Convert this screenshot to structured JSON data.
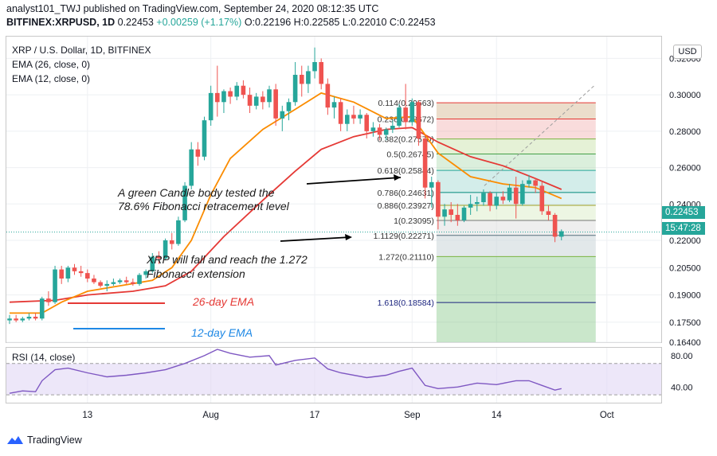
{
  "header": {
    "publisher_line": "analyst101_TWJ published on TradingView.com, September 24, 2020 08:12:35 UTC",
    "symbol": "BITFINEX:XRPUSD, 1D",
    "last": "0.22453",
    "change": "+0.00259 (+1.17%)",
    "ohlc": "O:0.22196 H:0.22585 L:0.22010 C:0.22453"
  },
  "legend": {
    "title": "XRP / U.S. Dollar, 1D, BITFINEX",
    "ema26": "EMA (26, close, 0)",
    "ema12": "EMA (12, close, 0)",
    "rsi": "RSI (14, close)"
  },
  "price_scale": {
    "currency_button": "USD",
    "last_price": "0.22453",
    "countdown": "15:47:28"
  },
  "annotations": {
    "note1_line1": "A green Candle body tested the",
    "note1_line2": "78.6% Fibonacci retracement level",
    "note2_line1": "XRP will fall and reach the 1.272",
    "note2_line2": "Fibonacci extension",
    "ema26_label": "26-day EMA",
    "ema12_label": "12-day EMA"
  },
  "footer": {
    "brand": "TradingView"
  },
  "colors": {
    "bull": "#26a69a",
    "bear": "#ef5350",
    "ema26": "#e53935",
    "ema12": "#fb8c00",
    "rsi": "#7e57c2",
    "rsi_band": "#e1d7f5",
    "ema26_sample": "#e53935",
    "ema12_sample": "#1e88e5"
  },
  "chart_data": {
    "type": "candlestick",
    "price_axis": {
      "ylim": [
        0.164,
        0.332
      ],
      "ticks": [
        "0.32000",
        "0.30000",
        "0.28000",
        "0.26000",
        "0.24000",
        "0.22000",
        "0.20500",
        "0.19000",
        "0.17500",
        "0.16400"
      ],
      "tick_values": [
        0.32,
        0.3,
        0.28,
        0.26,
        0.24,
        0.22,
        0.205,
        0.19,
        0.175,
        0.164
      ]
    },
    "time_axis": {
      "labels": [
        "13",
        "Aug",
        "17",
        "Sep",
        "14",
        "Oct"
      ],
      "label_days": [
        "2020-07-13",
        "2020-08-01",
        "2020-08-17",
        "2020-09-01",
        "2020-09-14",
        "2020-10-01"
      ],
      "start": "2020-07-01",
      "end": "2020-10-10"
    },
    "candles": [
      [
        "2020-07-01",
        0.176,
        0.179,
        0.174,
        0.177
      ],
      [
        "2020-07-02",
        0.177,
        0.179,
        0.175,
        0.176
      ],
      [
        "2020-07-03",
        0.176,
        0.178,
        0.175,
        0.177
      ],
      [
        "2020-07-04",
        0.177,
        0.18,
        0.176,
        0.178
      ],
      [
        "2020-07-05",
        0.178,
        0.18,
        0.176,
        0.177
      ],
      [
        "2020-07-06",
        0.177,
        0.189,
        0.176,
        0.188
      ],
      [
        "2020-07-07",
        0.188,
        0.192,
        0.184,
        0.186
      ],
      [
        "2020-07-08",
        0.186,
        0.206,
        0.185,
        0.204
      ],
      [
        "2020-07-09",
        0.204,
        0.206,
        0.196,
        0.199
      ],
      [
        "2020-07-10",
        0.199,
        0.206,
        0.197,
        0.205
      ],
      [
        "2020-07-11",
        0.205,
        0.207,
        0.201,
        0.203
      ],
      [
        "2020-07-12",
        0.203,
        0.206,
        0.2,
        0.202
      ],
      [
        "2020-07-13",
        0.202,
        0.204,
        0.197,
        0.199
      ],
      [
        "2020-07-14",
        0.199,
        0.201,
        0.196,
        0.197
      ],
      [
        "2020-07-15",
        0.197,
        0.198,
        0.194,
        0.195
      ],
      [
        "2020-07-16",
        0.195,
        0.198,
        0.192,
        0.196
      ],
      [
        "2020-07-17",
        0.196,
        0.199,
        0.195,
        0.197
      ],
      [
        "2020-07-18",
        0.197,
        0.199,
        0.196,
        0.198
      ],
      [
        "2020-07-19",
        0.198,
        0.2,
        0.196,
        0.197
      ],
      [
        "2020-07-20",
        0.197,
        0.199,
        0.195,
        0.196
      ],
      [
        "2020-07-21",
        0.196,
        0.202,
        0.195,
        0.201
      ],
      [
        "2020-07-22",
        0.201,
        0.204,
        0.199,
        0.203
      ],
      [
        "2020-07-23",
        0.203,
        0.213,
        0.202,
        0.211
      ],
      [
        "2020-07-24",
        0.211,
        0.214,
        0.207,
        0.21
      ],
      [
        "2020-07-25",
        0.21,
        0.221,
        0.209,
        0.22
      ],
      [
        "2020-07-26",
        0.22,
        0.224,
        0.215,
        0.218
      ],
      [
        "2020-07-27",
        0.218,
        0.233,
        0.217,
        0.231
      ],
      [
        "2020-07-28",
        0.231,
        0.252,
        0.23,
        0.25
      ],
      [
        "2020-07-29",
        0.25,
        0.274,
        0.248,
        0.27
      ],
      [
        "2020-07-30",
        0.27,
        0.274,
        0.261,
        0.266
      ],
      [
        "2020-07-31",
        0.266,
        0.288,
        0.264,
        0.286
      ],
      [
        "2020-08-01",
        0.286,
        0.305,
        0.283,
        0.301
      ],
      [
        "2020-08-02",
        0.301,
        0.316,
        0.288,
        0.296
      ],
      [
        "2020-08-03",
        0.296,
        0.303,
        0.29,
        0.302
      ],
      [
        "2020-08-04",
        0.302,
        0.304,
        0.295,
        0.299
      ],
      [
        "2020-08-05",
        0.299,
        0.307,
        0.297,
        0.305
      ],
      [
        "2020-08-06",
        0.305,
        0.308,
        0.298,
        0.3
      ],
      [
        "2020-08-07",
        0.3,
        0.304,
        0.29,
        0.294
      ],
      [
        "2020-08-08",
        0.294,
        0.301,
        0.292,
        0.299
      ],
      [
        "2020-08-09",
        0.299,
        0.302,
        0.292,
        0.296
      ],
      [
        "2020-08-10",
        0.296,
        0.305,
        0.293,
        0.303
      ],
      [
        "2020-08-11",
        0.303,
        0.306,
        0.283,
        0.287
      ],
      [
        "2020-08-12",
        0.287,
        0.294,
        0.28,
        0.291
      ],
      [
        "2020-08-13",
        0.291,
        0.298,
        0.286,
        0.296
      ],
      [
        "2020-08-14",
        0.296,
        0.318,
        0.294,
        0.311
      ],
      [
        "2020-08-15",
        0.311,
        0.316,
        0.299,
        0.306
      ],
      [
        "2020-08-16",
        0.306,
        0.316,
        0.301,
        0.313
      ],
      [
        "2020-08-17",
        0.313,
        0.326,
        0.309,
        0.318
      ],
      [
        "2020-08-18",
        0.318,
        0.32,
        0.303,
        0.306
      ],
      [
        "2020-08-19",
        0.306,
        0.309,
        0.289,
        0.293
      ],
      [
        "2020-08-20",
        0.293,
        0.299,
        0.287,
        0.296
      ],
      [
        "2020-08-21",
        0.296,
        0.298,
        0.28,
        0.284
      ],
      [
        "2020-08-22",
        0.284,
        0.292,
        0.28,
        0.289
      ],
      [
        "2020-08-23",
        0.289,
        0.294,
        0.284,
        0.287
      ],
      [
        "2020-08-24",
        0.287,
        0.292,
        0.284,
        0.289
      ],
      [
        "2020-08-25",
        0.289,
        0.29,
        0.276,
        0.28
      ],
      [
        "2020-08-26",
        0.28,
        0.285,
        0.277,
        0.282
      ],
      [
        "2020-08-27",
        0.282,
        0.284,
        0.275,
        0.278
      ],
      [
        "2020-08-28",
        0.278,
        0.282,
        0.275,
        0.281
      ],
      [
        "2020-08-29",
        0.281,
        0.286,
        0.279,
        0.283
      ],
      [
        "2020-08-30",
        0.283,
        0.295,
        0.282,
        0.293
      ],
      [
        "2020-08-31",
        0.293,
        0.306,
        0.281,
        0.285
      ],
      [
        "2020-09-01",
        0.285,
        0.298,
        0.283,
        0.296
      ],
      [
        "2020-09-02",
        0.296,
        0.297,
        0.272,
        0.276
      ],
      [
        "2020-09-03",
        0.276,
        0.278,
        0.243,
        0.249
      ],
      [
        "2020-09-04",
        0.249,
        0.255,
        0.238,
        0.252
      ],
      [
        "2020-09-05",
        0.252,
        0.253,
        0.226,
        0.233
      ],
      [
        "2020-09-06",
        0.233,
        0.24,
        0.228,
        0.237
      ],
      [
        "2020-09-07",
        0.237,
        0.241,
        0.23,
        0.234
      ],
      [
        "2020-09-08",
        0.234,
        0.24,
        0.228,
        0.231
      ],
      [
        "2020-09-09",
        0.231,
        0.239,
        0.23,
        0.238
      ],
      [
        "2020-09-10",
        0.238,
        0.245,
        0.234,
        0.24
      ],
      [
        "2020-09-11",
        0.24,
        0.244,
        0.236,
        0.241
      ],
      [
        "2020-09-12",
        0.241,
        0.248,
        0.239,
        0.246
      ],
      [
        "2020-09-13",
        0.246,
        0.247,
        0.236,
        0.239
      ],
      [
        "2020-09-14",
        0.239,
        0.246,
        0.237,
        0.244
      ],
      [
        "2020-09-15",
        0.244,
        0.247,
        0.24,
        0.242
      ],
      [
        "2020-09-16",
        0.242,
        0.251,
        0.241,
        0.249
      ],
      [
        "2020-09-17",
        0.249,
        0.255,
        0.232,
        0.24
      ],
      [
        "2020-09-18",
        0.24,
        0.253,
        0.239,
        0.251
      ],
      [
        "2020-09-19",
        0.251,
        0.256,
        0.249,
        0.253
      ],
      [
        "2020-09-20",
        0.253,
        0.254,
        0.246,
        0.25
      ],
      [
        "2020-09-21",
        0.25,
        0.252,
        0.234,
        0.236
      ],
      [
        "2020-09-22",
        0.236,
        0.239,
        0.231,
        0.234
      ],
      [
        "2020-09-23",
        0.234,
        0.235,
        0.219,
        0.222
      ],
      [
        "2020-09-24",
        0.222,
        0.226,
        0.22,
        0.225
      ]
    ],
    "ema12": [
      [
        "2020-07-01",
        0.18
      ],
      [
        "2020-07-06",
        0.18
      ],
      [
        "2020-07-09",
        0.186
      ],
      [
        "2020-07-13",
        0.192
      ],
      [
        "2020-07-18",
        0.195
      ],
      [
        "2020-07-23",
        0.198
      ],
      [
        "2020-07-26",
        0.205
      ],
      [
        "2020-07-29",
        0.22
      ],
      [
        "2020-08-01",
        0.245
      ],
      [
        "2020-08-04",
        0.265
      ],
      [
        "2020-08-09",
        0.281
      ],
      [
        "2020-08-14",
        0.292
      ],
      [
        "2020-08-18",
        0.301
      ],
      [
        "2020-08-23",
        0.296
      ],
      [
        "2020-08-28",
        0.287
      ],
      [
        "2020-09-01",
        0.288
      ],
      [
        "2020-09-05",
        0.268
      ],
      [
        "2020-09-10",
        0.255
      ],
      [
        "2020-09-15",
        0.251
      ],
      [
        "2020-09-20",
        0.249
      ],
      [
        "2020-09-24",
        0.243
      ]
    ],
    "ema26": [
      [
        "2020-07-01",
        0.186
      ],
      [
        "2020-07-08",
        0.187
      ],
      [
        "2020-07-13",
        0.19
      ],
      [
        "2020-07-20",
        0.192
      ],
      [
        "2020-07-25",
        0.195
      ],
      [
        "2020-07-29",
        0.203
      ],
      [
        "2020-08-03",
        0.222
      ],
      [
        "2020-08-09",
        0.242
      ],
      [
        "2020-08-14",
        0.258
      ],
      [
        "2020-08-18",
        0.27
      ],
      [
        "2020-08-23",
        0.277
      ],
      [
        "2020-08-28",
        0.281
      ],
      [
        "2020-09-01",
        0.282
      ],
      [
        "2020-09-05",
        0.274
      ],
      [
        "2020-09-10",
        0.266
      ],
      [
        "2020-09-15",
        0.261
      ],
      [
        "2020-09-20",
        0.254
      ],
      [
        "2020-09-24",
        0.248
      ]
    ],
    "fib_levels": [
      {
        "label": "0.114(0.29563)",
        "value": 0.29563
      },
      {
        "label": "0.236(0.28672)",
        "value": 0.28672
      },
      {
        "label": "0.382(0.27570)",
        "value": 0.2757
      },
      {
        "label": "0.5(0.26745)",
        "value": 0.26745
      },
      {
        "label": "0.618(0.25844)",
        "value": 0.25844
      },
      {
        "label": "0.786(0.24631)",
        "value": 0.24631
      },
      {
        "label": "0.886(0.23927)",
        "value": 0.23927
      },
      {
        "label": "1(0.23095)",
        "value": 0.23095
      },
      {
        "label": "1.1129(0.22271)",
        "value": 0.22271
      },
      {
        "label": "1.272(0.21110)",
        "value": 0.2111
      },
      {
        "label": "1.618(0.18584)",
        "value": 0.18584
      }
    ],
    "rsi": {
      "ylim": [
        20,
        90
      ],
      "ticks": [
        "80.00",
        "40.00"
      ],
      "tick_values": [
        80,
        40
      ],
      "band": [
        30,
        70
      ],
      "values": [
        [
          "2020-07-01",
          32
        ],
        [
          "2020-07-03",
          35
        ],
        [
          "2020-07-05",
          34
        ],
        [
          "2020-07-06",
          48
        ],
        [
          "2020-07-08",
          62
        ],
        [
          "2020-07-10",
          64
        ],
        [
          "2020-07-13",
          58
        ],
        [
          "2020-07-16",
          53
        ],
        [
          "2020-07-19",
          55
        ],
        [
          "2020-07-22",
          58
        ],
        [
          "2020-07-25",
          62
        ],
        [
          "2020-07-28",
          70
        ],
        [
          "2020-07-31",
          80
        ],
        [
          "2020-08-02",
          88
        ],
        [
          "2020-08-04",
          83
        ],
        [
          "2020-08-07",
          78
        ],
        [
          "2020-08-10",
          80
        ],
        [
          "2020-08-11",
          68
        ],
        [
          "2020-08-14",
          74
        ],
        [
          "2020-08-17",
          77
        ],
        [
          "2020-08-19",
          63
        ],
        [
          "2020-08-21",
          58
        ],
        [
          "2020-08-25",
          52
        ],
        [
          "2020-08-28",
          55
        ],
        [
          "2020-08-30",
          60
        ],
        [
          "2020-09-01",
          64
        ],
        [
          "2020-09-03",
          42
        ],
        [
          "2020-09-05",
          38
        ],
        [
          "2020-09-08",
          40
        ],
        [
          "2020-09-11",
          45
        ],
        [
          "2020-09-14",
          43
        ],
        [
          "2020-09-17",
          48
        ],
        [
          "2020-09-19",
          48
        ],
        [
          "2020-09-21",
          42
        ],
        [
          "2020-09-23",
          36
        ],
        [
          "2020-09-24",
          38
        ]
      ]
    }
  }
}
